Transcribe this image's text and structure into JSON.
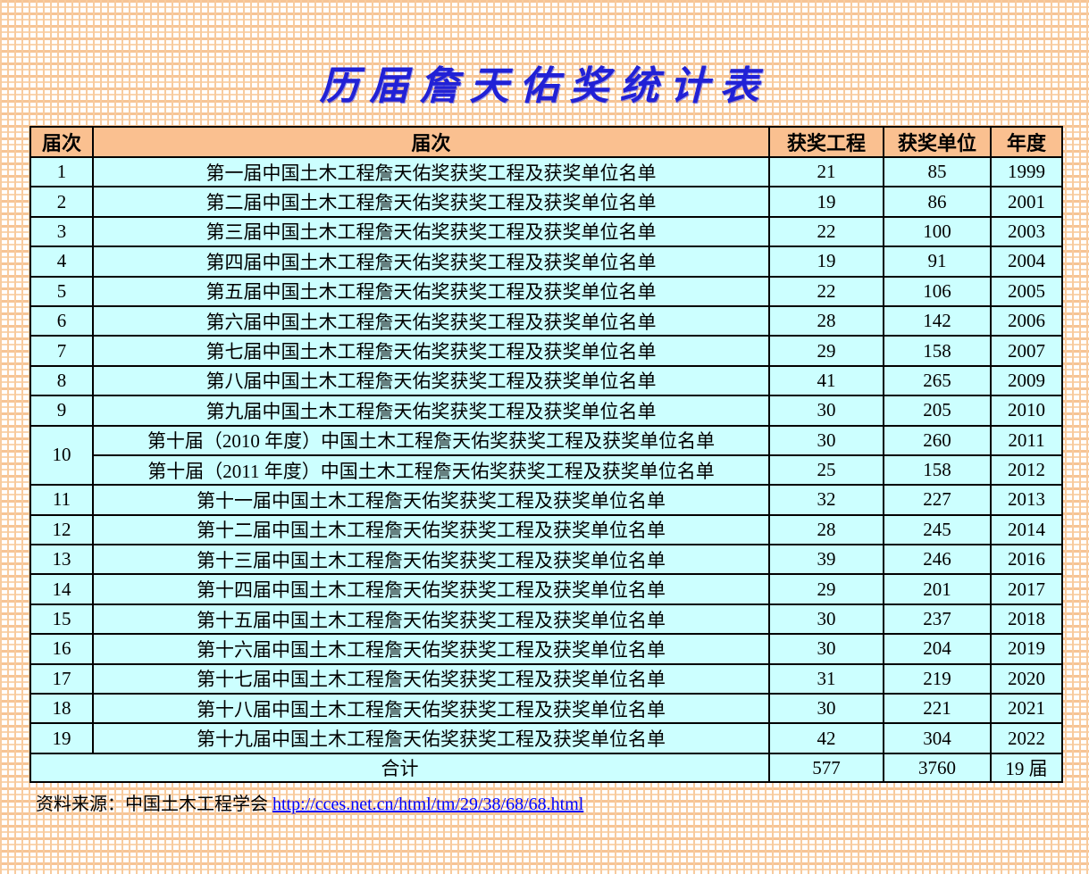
{
  "title": "历届詹天佑奖统计表",
  "colors": {
    "title_blue": "#2121d6",
    "header_bg": "#fac090",
    "cell_bg": "#ccffff",
    "grid_line": "#f8cb9e",
    "link_blue": "#0000ff",
    "border": "#000000"
  },
  "table": {
    "headers": [
      "届次",
      "届次",
      "获奖工程",
      "获奖单位",
      "年度"
    ],
    "rows": [
      {
        "no": "1",
        "rowspan": 1,
        "name": "第一届中国土木工程詹天佑奖获奖工程及获奖单位名单",
        "projects": "21",
        "units": "85",
        "year": "1999"
      },
      {
        "no": "2",
        "rowspan": 1,
        "name": "第二届中国土木工程詹天佑奖获奖工程及获奖单位名单",
        "projects": "19",
        "units": "86",
        "year": "2001"
      },
      {
        "no": "3",
        "rowspan": 1,
        "name": "第三届中国土木工程詹天佑奖获奖工程及获奖单位名单",
        "projects": "22",
        "units": "100",
        "year": "2003"
      },
      {
        "no": "4",
        "rowspan": 1,
        "name": "第四届中国土木工程詹天佑奖获奖工程及获奖单位名单",
        "projects": "19",
        "units": "91",
        "year": "2004"
      },
      {
        "no": "5",
        "rowspan": 1,
        "name": "第五届中国土木工程詹天佑奖获奖工程及获奖单位名单",
        "projects": "22",
        "units": "106",
        "year": "2005"
      },
      {
        "no": "6",
        "rowspan": 1,
        "name": "第六届中国土木工程詹天佑奖获奖工程及获奖单位名单",
        "projects": "28",
        "units": "142",
        "year": "2006"
      },
      {
        "no": "7",
        "rowspan": 1,
        "name": "第七届中国土木工程詹天佑奖获奖工程及获奖单位名单",
        "projects": "29",
        "units": "158",
        "year": "2007"
      },
      {
        "no": "8",
        "rowspan": 1,
        "name": "第八届中国土木工程詹天佑奖获奖工程及获奖单位名单",
        "projects": "41",
        "units": "265",
        "year": "2009"
      },
      {
        "no": "9",
        "rowspan": 1,
        "name": "第九届中国土木工程詹天佑奖获奖工程及获奖单位名单",
        "projects": "30",
        "units": "205",
        "year": "2010"
      },
      {
        "no": "10",
        "rowspan": 2,
        "name": "第十届（2010 年度）中国土木工程詹天佑奖获奖工程及获奖单位名单",
        "projects": "30",
        "units": "260",
        "year": "2011"
      },
      {
        "no": null,
        "rowspan": 1,
        "name": "第十届（2011 年度）中国土木工程詹天佑奖获奖工程及获奖单位名单",
        "projects": "25",
        "units": "158",
        "year": "2012"
      },
      {
        "no": "11",
        "rowspan": 1,
        "name": "第十一届中国土木工程詹天佑奖获奖工程及获奖单位名单",
        "projects": "32",
        "units": "227",
        "year": "2013"
      },
      {
        "no": "12",
        "rowspan": 1,
        "name": "第十二届中国土木工程詹天佑奖获奖工程及获奖单位名单",
        "projects": "28",
        "units": "245",
        "year": "2014"
      },
      {
        "no": "13",
        "rowspan": 1,
        "name": "第十三届中国土木工程詹天佑奖获奖工程及获奖单位名单",
        "projects": "39",
        "units": "246",
        "year": "2016"
      },
      {
        "no": "14",
        "rowspan": 1,
        "name": "第十四届中国土木工程詹天佑奖获奖工程及获奖单位名单",
        "projects": "29",
        "units": "201",
        "year": "2017"
      },
      {
        "no": "15",
        "rowspan": 1,
        "name": "第十五届中国土木工程詹天佑奖获奖工程及获奖单位名单",
        "projects": "30",
        "units": "237",
        "year": "2018"
      },
      {
        "no": "16",
        "rowspan": 1,
        "name": "第十六届中国土木工程詹天佑奖获奖工程及获奖单位名单",
        "projects": "30",
        "units": "204",
        "year": "2019"
      },
      {
        "no": "17",
        "rowspan": 1,
        "name": "第十七届中国土木工程詹天佑奖获奖工程及获奖单位名单",
        "projects": "31",
        "units": "219",
        "year": "2020"
      },
      {
        "no": "18",
        "rowspan": 1,
        "name": "第十八届中国土木工程詹天佑奖获奖工程及获奖单位名单",
        "projects": "30",
        "units": "221",
        "year": "2021"
      },
      {
        "no": "19",
        "rowspan": 1,
        "name": "第十九届中国土木工程詹天佑奖获奖工程及获奖单位名单",
        "projects": "42",
        "units": "304",
        "year": "2022"
      }
    ],
    "total": {
      "label": "合计",
      "projects": "577",
      "units": "3760",
      "year": "19 届"
    }
  },
  "footer": {
    "source_label": "资料来源：中国土木工程学会 ",
    "link_text": "http://cces.net.cn/html/tm/29/38/68/68.html"
  }
}
